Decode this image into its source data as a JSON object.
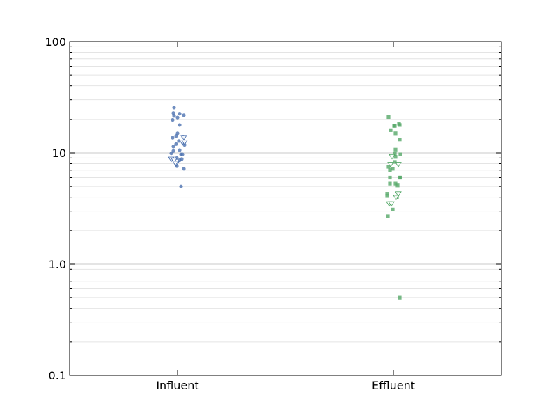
{
  "chart_data": {
    "type": "scatter",
    "title": "",
    "xlabel": "",
    "ylabel": "",
    "yscale": "log",
    "ylim": [
      0.1,
      100
    ],
    "y_ticks": [
      "0.1",
      "1.0",
      "10",
      "100"
    ],
    "categories": [
      "Influent",
      "Effluent"
    ],
    "grid": "horizontal major and minor",
    "series": [
      {
        "category": "Influent",
        "color": "#4c72b0",
        "marker": "circle",
        "points": [
          {
            "x": -0.05,
            "y": 25.5
          },
          {
            "x": 0.03,
            "y": 22.5
          },
          {
            "x": -0.06,
            "y": 22.8
          },
          {
            "x": -0.05,
            "y": 21.5
          },
          {
            "x": 0.0,
            "y": 20.8
          },
          {
            "x": -0.07,
            "y": 19.8
          },
          {
            "x": 0.03,
            "y": 17.8
          },
          {
            "x": 0.0,
            "y": 15.0
          },
          {
            "x": -0.02,
            "y": 14.2
          },
          {
            "x": -0.07,
            "y": 13.7
          },
          {
            "x": 0.02,
            "y": 12.8
          },
          {
            "x": -0.02,
            "y": 12.0
          },
          {
            "x": 0.1,
            "y": 11.8
          },
          {
            "x": -0.06,
            "y": 11.4
          },
          {
            "x": 0.03,
            "y": 10.6
          },
          {
            "x": -0.06,
            "y": 10.4
          },
          {
            "x": -0.09,
            "y": 9.9
          },
          {
            "x": 0.05,
            "y": 9.7
          },
          {
            "x": 0.07,
            "y": 9.7
          },
          {
            "x": -0.01,
            "y": 9.0
          },
          {
            "x": 0.06,
            "y": 8.8
          },
          {
            "x": 0.03,
            "y": 8.6
          },
          {
            "x": -0.02,
            "y": 8.0
          },
          {
            "x": -0.01,
            "y": 7.6
          },
          {
            "x": 0.09,
            "y": 7.2
          },
          {
            "x": 0.05,
            "y": 5.0
          },
          {
            "x": 0.09,
            "y": 21.8
          },
          {
            "x": 0.08,
            "y": 14.0
          }
        ]
      },
      {
        "category": "Influent",
        "color": "#4c72b0",
        "marker": "triangle-down-open",
        "points": [
          {
            "x": 0.09,
            "y": 13.8
          },
          {
            "x": 0.07,
            "y": 12.5
          },
          {
            "x": 0.1,
            "y": 12.5
          },
          {
            "x": -0.09,
            "y": 8.8
          },
          {
            "x": -0.05,
            "y": 8.6
          },
          {
            "x": -0.02,
            "y": 8.0
          },
          {
            "x": -0.03,
            "y": 8.1
          }
        ]
      },
      {
        "category": "Effluent",
        "color": "#55a868",
        "marker": "square",
        "points": [
          {
            "x": -0.07,
            "y": 21.0
          },
          {
            "x": 0.08,
            "y": 18.3
          },
          {
            "x": 0.09,
            "y": 17.8
          },
          {
            "x": 0.02,
            "y": 17.5
          },
          {
            "x": 0.01,
            "y": 17.5
          },
          {
            "x": -0.04,
            "y": 16.0
          },
          {
            "x": 0.03,
            "y": 15.0
          },
          {
            "x": 0.09,
            "y": 13.2
          },
          {
            "x": 0.03,
            "y": 10.7
          },
          {
            "x": 0.02,
            "y": 9.8
          },
          {
            "x": 0.1,
            "y": 9.7
          },
          {
            "x": 0.03,
            "y": 9.2
          },
          {
            "x": 0.02,
            "y": 8.3
          },
          {
            "x": -0.07,
            "y": 7.5
          },
          {
            "x": -0.01,
            "y": 7.2
          },
          {
            "x": -0.05,
            "y": 7.0
          },
          {
            "x": -0.05,
            "y": 6.0
          },
          {
            "x": 0.09,
            "y": 6.0
          },
          {
            "x": 0.1,
            "y": 6.0
          },
          {
            "x": -0.05,
            "y": 5.3
          },
          {
            "x": 0.03,
            "y": 5.3
          },
          {
            "x": 0.06,
            "y": 5.1
          },
          {
            "x": -0.09,
            "y": 4.3
          },
          {
            "x": -0.09,
            "y": 4.1
          },
          {
            "x": 0.05,
            "y": 4.0
          },
          {
            "x": -0.01,
            "y": 3.1
          },
          {
            "x": -0.08,
            "y": 2.7
          },
          {
            "x": 0.09,
            "y": 0.5
          }
        ]
      },
      {
        "category": "Effluent",
        "color": "#55a868",
        "marker": "triangle-down-open",
        "points": [
          {
            "x": -0.02,
            "y": 9.3
          },
          {
            "x": -0.04,
            "y": 7.9
          },
          {
            "x": 0.07,
            "y": 7.9
          },
          {
            "x": 0.07,
            "y": 4.3
          },
          {
            "x": 0.04,
            "y": 4.0
          },
          {
            "x": -0.06,
            "y": 3.5
          },
          {
            "x": -0.03,
            "y": 3.5
          }
        ]
      }
    ]
  }
}
